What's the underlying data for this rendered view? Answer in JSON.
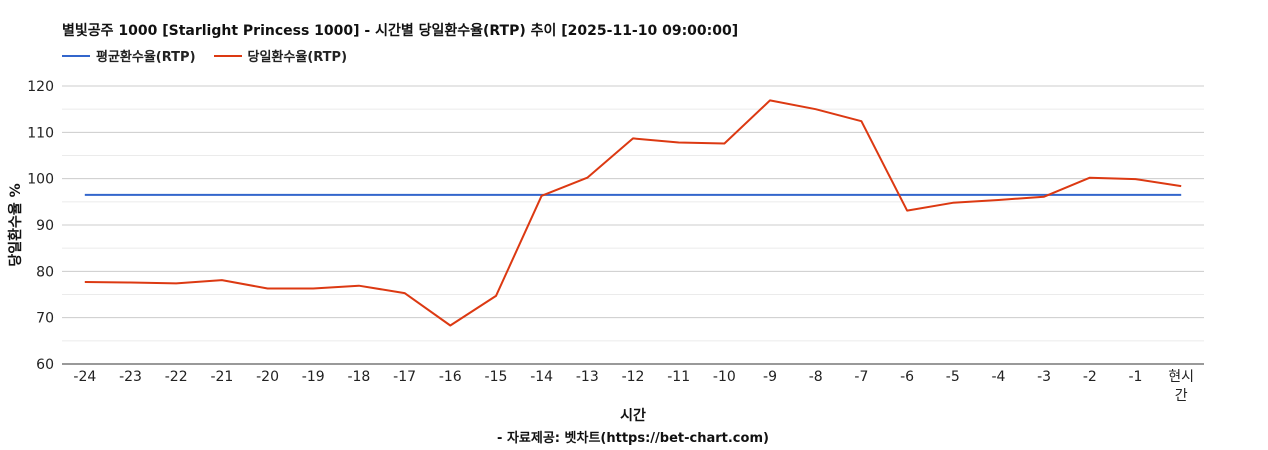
{
  "chart_data": {
    "type": "line",
    "title": "별빛공주 1000 [Starlight Princess 1000] - 시간별 당일환수율(RTP) 추이 [2025-11-10 09:00:00]",
    "xlabel": "시간",
    "ylabel": "당일환수율 %",
    "source": "- 자료제공: 벳차트(https://bet-chart.com)",
    "categories": [
      "-24",
      "-23",
      "-22",
      "-21",
      "-20",
      "-19",
      "-18",
      "-17",
      "-16",
      "-15",
      "-14",
      "-13",
      "-12",
      "-11",
      "-10",
      "-9",
      "-8",
      "-7",
      "-6",
      "-5",
      "-4",
      "-3",
      "-2",
      "-1",
      "현시간"
    ],
    "series": [
      {
        "name": "평균환수율(RTP)",
        "color": "#3366cc",
        "values": [
          96.5,
          96.5,
          96.5,
          96.5,
          96.5,
          96.5,
          96.5,
          96.5,
          96.5,
          96.5,
          96.5,
          96.5,
          96.5,
          96.5,
          96.5,
          96.5,
          96.5,
          96.5,
          96.5,
          96.5,
          96.5,
          96.5,
          96.5,
          96.5,
          96.5
        ]
      },
      {
        "name": "당일환수율(RTP)",
        "color": "#dc3912",
        "values": [
          77.7,
          77.6,
          77.4,
          78.1,
          76.3,
          76.3,
          76.9,
          75.3,
          68.3,
          74.7,
          96.3,
          100.2,
          108.7,
          107.8,
          107.6,
          116.9,
          115.0,
          112.4,
          93.1,
          94.8,
          95.4,
          96.1,
          100.2,
          99.9,
          98.4
        ]
      }
    ],
    "ylim": [
      60,
      120
    ],
    "yticks": [
      60,
      70,
      80,
      90,
      100,
      110,
      120
    ],
    "grid": true,
    "legend_position": "top-left"
  }
}
